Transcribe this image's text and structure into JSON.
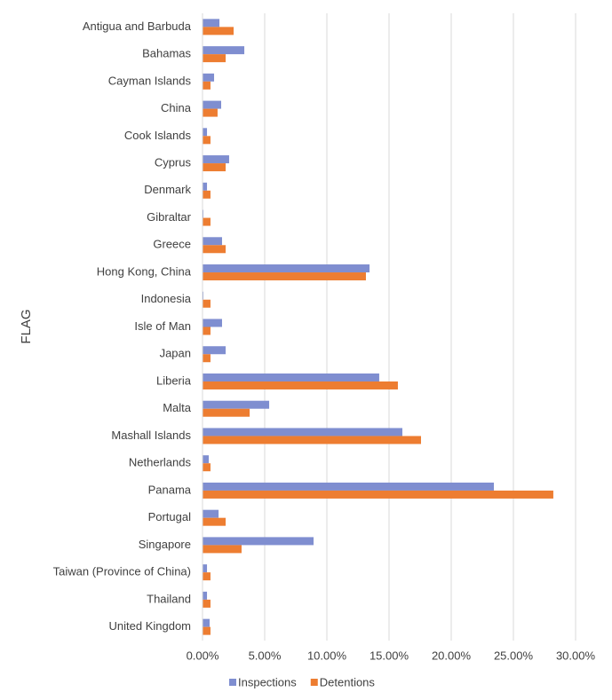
{
  "chart_data": {
    "type": "hbar",
    "y_label": "FLAG",
    "categories": [
      "Antigua and Barbuda",
      "Bahamas",
      "Cayman Islands",
      "China",
      "Cook Islands",
      "Cyprus",
      "Denmark",
      "Gibraltar",
      "Greece",
      "Hong Kong, China",
      "Indonesia",
      "Isle of Man",
      "Japan",
      "Liberia",
      "Malta",
      "Mashall Islands",
      "Netherlands",
      "Panama",
      "Portugal",
      "Singapore",
      "Taiwan (Province of China)",
      "Thailand",
      "United Kingdom"
    ],
    "series": [
      {
        "name": "Inspections",
        "color": "#7f8ed0",
        "values": [
          1.36,
          3.36,
          0.93,
          1.5,
          0.36,
          2.14,
          0.36,
          0.07,
          1.57,
          13.43,
          0.07,
          1.57,
          1.86,
          14.21,
          5.36,
          16.07,
          0.5,
          23.43,
          1.29,
          8.93,
          0.36,
          0.36,
          0.57
        ]
      },
      {
        "name": "Detentions",
        "color": "#ed7d31",
        "values": [
          2.5,
          1.86,
          0.64,
          1.21,
          0.64,
          1.86,
          0.64,
          0.64,
          1.86,
          13.14,
          0.64,
          0.64,
          0.64,
          15.71,
          3.79,
          17.57,
          0.64,
          28.21,
          1.86,
          3.14,
          0.64,
          0.64,
          0.64
        ]
      }
    ],
    "xlim": [
      0,
      30
    ],
    "xticks": [
      {
        "value": 0,
        "label": "0.00%"
      },
      {
        "value": 5,
        "label": "5.00%"
      },
      {
        "value": 10,
        "label": "10.00%"
      },
      {
        "value": 15,
        "label": "15.00%"
      },
      {
        "value": 20,
        "label": "20.00%"
      },
      {
        "value": 25,
        "label": "25.00%"
      },
      {
        "value": 30,
        "label": "30.00%"
      }
    ],
    "grid": true,
    "legend": "bottom"
  }
}
